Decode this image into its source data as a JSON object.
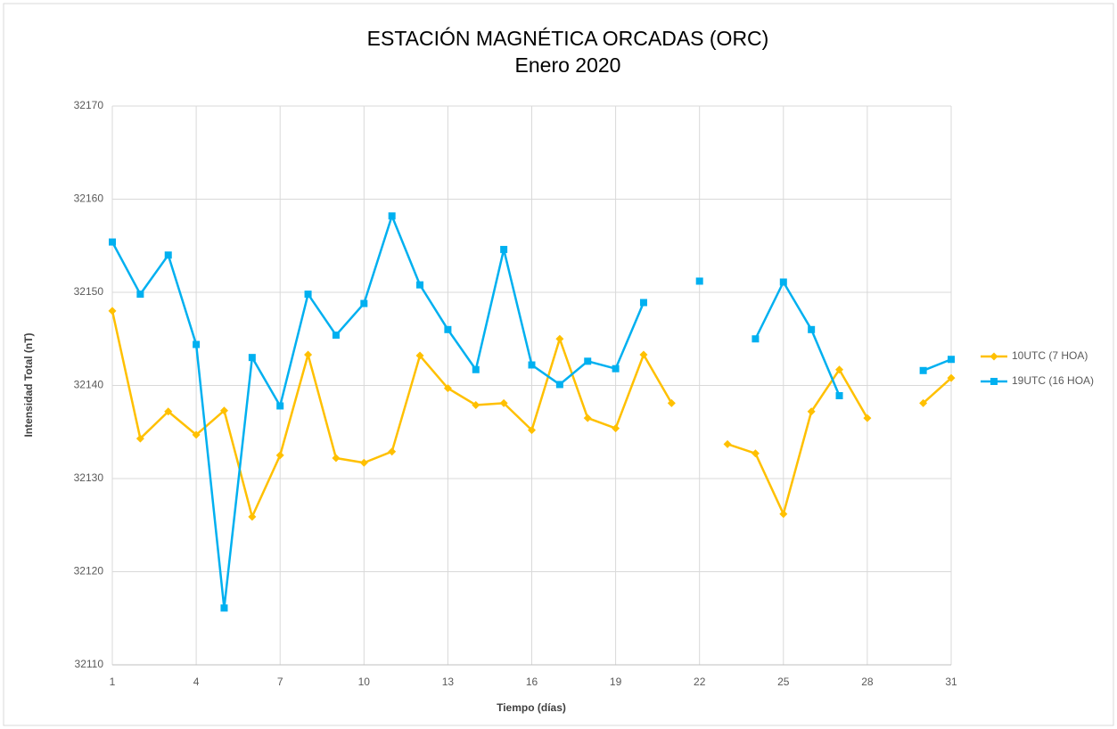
{
  "chart_data": {
    "type": "line",
    "title": "ESTACIÓN MAGNÉTICA ORCADAS (ORC)",
    "subtitle": "Enero 2020",
    "x_label": "Tiempo (días)",
    "y_label": "Intensidad Total (nT)",
    "x": [
      1,
      2,
      3,
      4,
      5,
      6,
      7,
      8,
      9,
      10,
      11,
      12,
      13,
      14,
      15,
      16,
      17,
      18,
      19,
      20,
      21,
      22,
      23,
      24,
      25,
      26,
      27,
      28,
      29,
      30,
      31
    ],
    "xlim": [
      1,
      31
    ],
    "xticks": [
      1,
      4,
      7,
      10,
      13,
      16,
      19,
      22,
      25,
      28,
      31
    ],
    "ylim": [
      32110,
      32170
    ],
    "yticks": [
      32110,
      32120,
      32130,
      32140,
      32150,
      32160,
      32170
    ],
    "grid": true,
    "legend": "right",
    "series": [
      {
        "name": "10UTC (7 HOA)",
        "color": "#ffc000",
        "marker": "diamond",
        "values": [
          32148.0,
          32134.3,
          32137.2,
          32134.7,
          32137.3,
          32125.9,
          32132.5,
          32143.3,
          32132.2,
          32131.7,
          32132.9,
          32143.2,
          32139.7,
          32137.9,
          32138.1,
          32135.2,
          32145.0,
          32136.5,
          32135.4,
          32143.3,
          32138.1,
          null,
          32133.7,
          32132.7,
          32126.2,
          32137.2,
          32141.7,
          32136.5,
          null,
          32138.1,
          32140.8
        ]
      },
      {
        "name": "19UTC (16 HOA)",
        "color": "#00b0f0",
        "marker": "square",
        "values": [
          32155.4,
          32149.8,
          32154.0,
          32144.4,
          32116.1,
          32143.0,
          32137.8,
          32149.8,
          32145.4,
          32148.8,
          32158.2,
          32150.8,
          32146.0,
          32141.7,
          32154.6,
          32142.2,
          32140.1,
          32142.6,
          32141.8,
          32148.9,
          null,
          32151.2,
          null,
          32145.0,
          32151.1,
          32146.0,
          32138.9,
          null,
          null,
          32141.6,
          32142.8
        ]
      }
    ]
  }
}
